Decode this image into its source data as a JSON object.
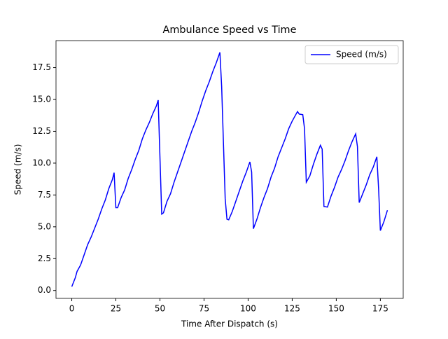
{
  "chart_data": {
    "type": "line",
    "title": "Ambulance Speed vs Time",
    "x_label": "Time After Dispatch (s)",
    "y_label": "Speed (m/s)",
    "x": [
      0,
      2,
      3,
      5,
      7,
      9,
      11,
      13,
      15,
      17,
      19,
      21,
      23,
      24,
      25,
      26,
      28,
      30,
      32,
      34,
      36,
      38,
      40,
      42,
      44,
      46,
      48,
      49,
      51,
      52,
      54,
      56,
      58,
      60,
      62,
      64,
      66,
      68,
      70,
      72,
      74,
      76,
      78,
      80,
      82,
      84,
      85,
      87,
      88,
      89,
      91,
      93,
      95,
      97,
      99,
      101,
      102,
      103,
      105,
      107,
      109,
      111,
      113,
      115,
      117,
      119,
      121,
      123,
      125,
      127,
      128,
      129,
      131,
      132,
      133,
      135,
      137,
      139,
      141,
      142,
      143,
      145,
      147,
      149,
      151,
      153,
      155,
      157,
      159,
      161,
      162,
      163,
      165,
      167,
      169,
      171,
      173,
      174,
      175,
      177,
      179
    ],
    "series": [
      {
        "name": "Speed (m/s)",
        "color": "#0000ff",
        "values": [
          0.3,
          1.0,
          1.5,
          2.0,
          2.8,
          3.6,
          4.2,
          4.9,
          5.6,
          6.4,
          7.1,
          8.0,
          8.7,
          9.25,
          6.5,
          6.5,
          7.3,
          7.9,
          8.8,
          9.5,
          10.3,
          11.0,
          11.9,
          12.6,
          13.2,
          13.9,
          14.5,
          14.95,
          6.0,
          6.1,
          7.0,
          7.6,
          8.5,
          9.3,
          10.1,
          10.9,
          11.7,
          12.5,
          13.2,
          14.0,
          14.9,
          15.7,
          16.4,
          17.2,
          17.9,
          18.7,
          16.0,
          7.2,
          5.6,
          5.55,
          6.2,
          7.0,
          7.8,
          8.6,
          9.3,
          10.1,
          9.3,
          4.85,
          5.6,
          6.5,
          7.3,
          8.0,
          8.9,
          9.6,
          10.5,
          11.2,
          11.9,
          12.7,
          13.3,
          13.8,
          14.05,
          13.85,
          13.8,
          12.7,
          8.5,
          9.0,
          9.9,
          10.7,
          11.4,
          11.1,
          6.6,
          6.55,
          7.4,
          8.1,
          8.9,
          9.5,
          10.2,
          11.0,
          11.7,
          12.3,
          11.3,
          6.9,
          7.6,
          8.3,
          9.1,
          9.7,
          10.5,
          8.0,
          4.7,
          5.4,
          6.3
        ]
      }
    ],
    "xlim": [
      -8.95,
      187.95
    ],
    "ylim": [
      -0.62,
      19.62
    ],
    "xticks": [
      0,
      25,
      50,
      75,
      100,
      125,
      150,
      175
    ],
    "yticks": [
      {
        "value": 0,
        "label": "0.0"
      },
      2.5,
      {
        "value": 5,
        "label": "5.0"
      },
      7.5,
      {
        "value": 10,
        "label": "10.0"
      },
      12.5,
      {
        "value": 15,
        "label": "15.0"
      },
      17.5
    ],
    "legend": "upper right"
  }
}
